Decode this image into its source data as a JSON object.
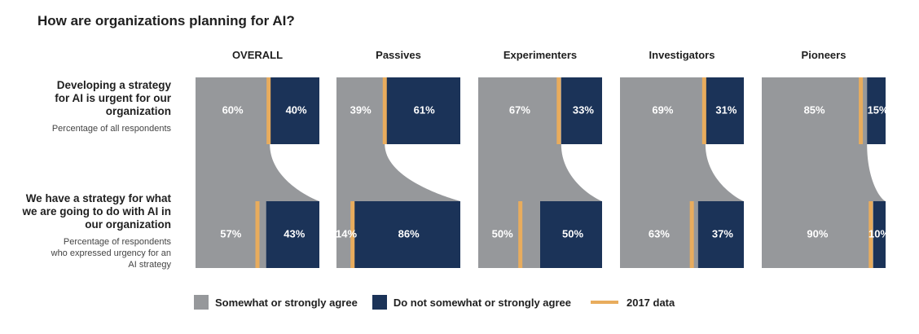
{
  "title": "How are organizations planning for AI?",
  "rows": [
    {
      "label": "Developing a strategy for AI is urgent for our organization",
      "sublabel": "Percentage of all respondents"
    },
    {
      "label": "We have a strategy for what we are going to do with AI in our organization",
      "sublabel": "Percentage of respondents who expressed urgency for an AI strategy"
    }
  ],
  "legend": {
    "agree": "Somewhat or strongly agree",
    "disagree": "Do not somewhat or strongly agree",
    "data2017": "2017 data"
  },
  "colors": {
    "agree": "#96989b",
    "disagree": "#1b3358",
    "marker2017": "#e8ac5d",
    "flow": "#96989b"
  },
  "chart_data": {
    "type": "bar",
    "orientation": "horizontal-stacked-100",
    "categories": [
      "OVERALL",
      "Passives",
      "Experimenters",
      "Investigators",
      "Pioneers"
    ],
    "rows": [
      {
        "name": "Developing a strategy for AI is urgent for our organization",
        "series": [
          {
            "name": "Somewhat or strongly agree",
            "values": [
              60,
              39,
              67,
              69,
              85
            ]
          },
          {
            "name": "Do not somewhat or strongly agree",
            "values": [
              40,
              61,
              33,
              31,
              15
            ]
          }
        ],
        "labels_agree": [
          "60%",
          "39%",
          "67%",
          "69%",
          "85%"
        ],
        "labels_disagree": [
          "40%",
          "61%",
          "33%",
          "31%",
          "15%"
        ],
        "data2017": [
          59,
          39,
          65,
          68,
          80
        ]
      },
      {
        "name": "We have a strategy for what we are going to do with AI in our organization",
        "series": [
          {
            "name": "Somewhat or strongly agree",
            "values": [
              57,
              14,
              50,
              63,
              90
            ]
          },
          {
            "name": "Do not somewhat or strongly agree",
            "values": [
              43,
              86,
              50,
              37,
              10
            ]
          }
        ],
        "labels_agree": [
          "57%",
          "14%",
          "50%",
          "63%",
          "90%"
        ],
        "labels_disagree": [
          "43%",
          "86%",
          "50%",
          "37%",
          "10%"
        ],
        "data2017": [
          50,
          13,
          34,
          58,
          88
        ]
      }
    ],
    "xlim": [
      0,
      100
    ]
  }
}
